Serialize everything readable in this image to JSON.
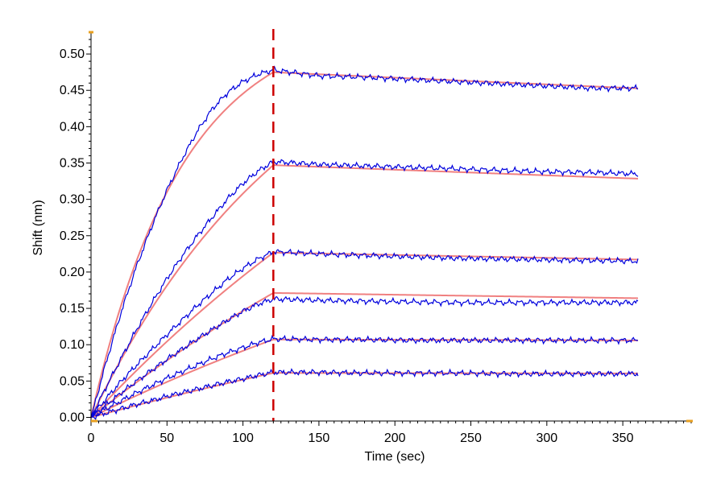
{
  "chart_data": {
    "type": "line",
    "title": "",
    "xlabel": "Time (sec)",
    "ylabel": "Shift (nm)",
    "xlim": [
      0,
      395
    ],
    "ylim": [
      -0.005,
      0.53
    ],
    "x_ticks": [
      0,
      50,
      100,
      150,
      200,
      250,
      300,
      350
    ],
    "x_tick_labels": [
      "0",
      "50",
      "100",
      "150",
      "200",
      "250",
      "300",
      "350"
    ],
    "y_ticks": [
      0.0,
      0.05,
      0.1,
      0.15,
      0.2,
      0.25,
      0.3,
      0.35,
      0.4,
      0.45,
      0.5
    ],
    "y_tick_labels": [
      "0.00",
      "0.05",
      "0.10",
      "0.15",
      "0.20",
      "0.25",
      "0.30",
      "0.35",
      "0.40",
      "0.45",
      "0.50"
    ],
    "grid": false,
    "legend": "none",
    "association_end_time": 120,
    "end_time": 360,
    "x": [
      0,
      10,
      20,
      30,
      40,
      50,
      60,
      70,
      80,
      90,
      100,
      110,
      120,
      150,
      180,
      210,
      240,
      270,
      300,
      330,
      360
    ],
    "series": [
      {
        "color": "#0000dd",
        "values": [
          0.0,
          0.076,
          0.146,
          0.208,
          0.263,
          0.313,
          0.356,
          0.394,
          0.425,
          0.447,
          0.462,
          0.472,
          0.478,
          0.47,
          0.468,
          0.465,
          0.462,
          0.459,
          0.456,
          0.453,
          0.453
        ]
      },
      {
        "color": "#0000dd",
        "values": [
          0.0,
          0.042,
          0.082,
          0.121,
          0.157,
          0.191,
          0.222,
          0.25,
          0.276,
          0.301,
          0.322,
          0.339,
          0.352,
          0.348,
          0.346,
          0.344,
          0.342,
          0.34,
          0.338,
          0.337,
          0.335
        ]
      },
      {
        "color": "#0000dd",
        "values": [
          0.0,
          0.026,
          0.05,
          0.072,
          0.093,
          0.114,
          0.134,
          0.154,
          0.172,
          0.19,
          0.205,
          0.218,
          0.228,
          0.225,
          0.223,
          0.221,
          0.219,
          0.218,
          0.217,
          0.216,
          0.215
        ]
      },
      {
        "color": "#0000dd",
        "values": [
          0.0,
          0.017,
          0.034,
          0.05,
          0.065,
          0.08,
          0.094,
          0.108,
          0.121,
          0.134,
          0.146,
          0.156,
          0.163,
          0.161,
          0.16,
          0.159,
          0.158,
          0.158,
          0.158,
          0.158,
          0.158
        ]
      },
      {
        "color": "#0000dd",
        "values": [
          0.0,
          0.012,
          0.023,
          0.034,
          0.044,
          0.054,
          0.063,
          0.072,
          0.081,
          0.089,
          0.096,
          0.103,
          0.108,
          0.107,
          0.107,
          0.106,
          0.106,
          0.106,
          0.106,
          0.106,
          0.106
        ]
      },
      {
        "color": "#0000dd",
        "values": [
          0.0,
          0.006,
          0.012,
          0.018,
          0.023,
          0.029,
          0.034,
          0.039,
          0.044,
          0.049,
          0.053,
          0.058,
          0.062,
          0.062,
          0.061,
          0.061,
          0.061,
          0.06,
          0.06,
          0.06,
          0.06
        ]
      }
    ],
    "fits": [
      {
        "color": "#f08080",
        "plateau": 0.55,
        "kobs": 0.0166,
        "kdiss": 0.0002
      },
      {
        "color": "#f08080",
        "plateau": 0.6,
        "kobs": 0.0072,
        "kdiss": 0.00023
      },
      {
        "color": "#f08080",
        "plateau": 0.75,
        "kobs": 0.003,
        "kdiss": 0.00018
      },
      {
        "color": "#f08080",
        "plateau": 0.6,
        "kobs": 0.0028,
        "kdiss": 0.00018
      },
      {
        "color": "#f08080",
        "plateau": 0.4,
        "kobs": 0.0026,
        "kdiss": 5e-05
      },
      {
        "color": "#f08080",
        "plateau": 0.3,
        "kobs": 0.0019,
        "kdiss": 5e-05
      }
    ],
    "colors": {
      "data_line": "#0000dd",
      "fit_line": "#f08080",
      "marker_line": "#cc0000",
      "axis": "#000000",
      "axis_end_marker": "#e8a020"
    }
  }
}
